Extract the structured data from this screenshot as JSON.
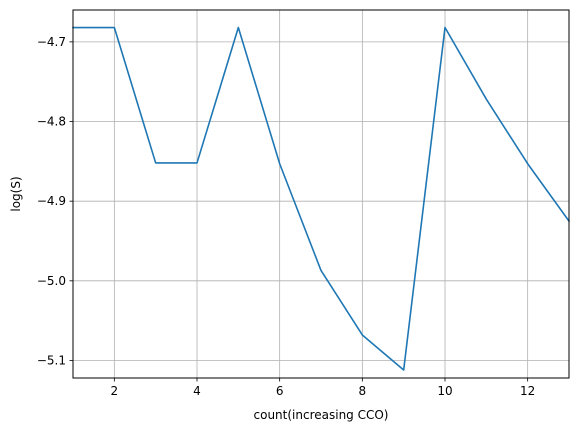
{
  "chart_data": {
    "type": "line",
    "title": "",
    "xlabel": "count(increasing CCO)",
    "ylabel": "log(S)",
    "xlim": [
      1,
      13
    ],
    "ylim": [
      -5.122,
      -4.66
    ],
    "grid": true,
    "x_ticks": [
      2,
      4,
      6,
      8,
      10,
      12
    ],
    "y_ticks": [
      -4.7,
      -4.8,
      -4.9,
      -5.0,
      -5.1
    ],
    "series": [
      {
        "color": "#1f77b4",
        "x": [
          1,
          2,
          3,
          4,
          5,
          6,
          7,
          8,
          9,
          10,
          11,
          12,
          13
        ],
        "y": [
          -4.682,
          -4.682,
          -4.852,
          -4.852,
          -4.682,
          -4.853,
          -4.987,
          -5.068,
          -5.112,
          -4.682,
          -4.772,
          -4.853,
          -4.925
        ]
      }
    ]
  }
}
